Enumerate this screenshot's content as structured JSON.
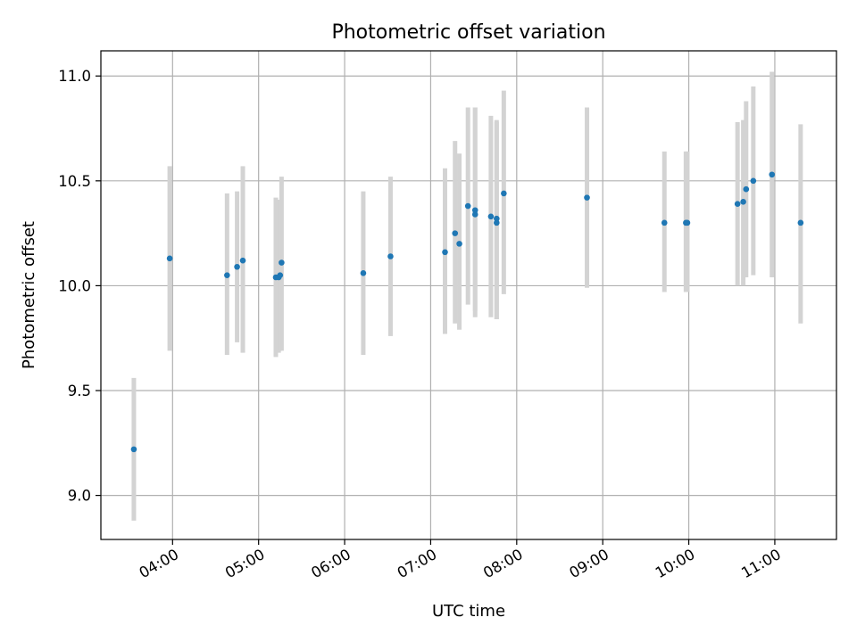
{
  "chart_data": {
    "type": "scatter",
    "title": "Photometric offset variation",
    "xlabel": "UTC time",
    "ylabel": "Photometric offset",
    "x_axis_type": "time",
    "xlim": [
      "03:10",
      "11:43"
    ],
    "ylim": [
      8.79,
      11.12
    ],
    "x_ticks": [
      "04:00",
      "05:00",
      "06:00",
      "07:00",
      "08:00",
      "09:00",
      "10:00",
      "11:00"
    ],
    "y_ticks": [
      9.0,
      9.5,
      10.0,
      10.5,
      11.0
    ],
    "y_tick_labels": [
      "9.0",
      "9.5",
      "10.0",
      "10.5",
      "11.0"
    ],
    "grid": true,
    "point_color": "#1f77b4",
    "errorbar_color": "#d3d3d3",
    "points": [
      {
        "x": "03:33",
        "y": 9.22,
        "ylow": 8.88,
        "yhigh": 9.56
      },
      {
        "x": "03:58",
        "y": 10.13,
        "ylow": 9.69,
        "yhigh": 10.57
      },
      {
        "x": "04:38",
        "y": 10.05,
        "ylow": 9.67,
        "yhigh": 10.44
      },
      {
        "x": "04:45",
        "y": 10.09,
        "ylow": 9.73,
        "yhigh": 10.45
      },
      {
        "x": "04:49",
        "y": 10.12,
        "ylow": 9.68,
        "yhigh": 10.57
      },
      {
        "x": "05:12",
        "y": 10.04,
        "ylow": 9.66,
        "yhigh": 10.42
      },
      {
        "x": "05:14",
        "y": 10.04,
        "ylow": 9.68,
        "yhigh": 10.41
      },
      {
        "x": "05:15",
        "y": 10.05,
        "ylow": 9.69,
        "yhigh": 10.41
      },
      {
        "x": "05:16",
        "y": 10.11,
        "ylow": 9.69,
        "yhigh": 10.52
      },
      {
        "x": "06:13",
        "y": 10.06,
        "ylow": 9.67,
        "yhigh": 10.45
      },
      {
        "x": "06:32",
        "y": 10.14,
        "ylow": 9.76,
        "yhigh": 10.52
      },
      {
        "x": "07:10",
        "y": 10.16,
        "ylow": 9.77,
        "yhigh": 10.56
      },
      {
        "x": "07:17",
        "y": 10.25,
        "ylow": 9.82,
        "yhigh": 10.69
      },
      {
        "x": "07:20",
        "y": 10.2,
        "ylow": 9.79,
        "yhigh": 10.63
      },
      {
        "x": "07:26",
        "y": 10.38,
        "ylow": 9.91,
        "yhigh": 10.85
      },
      {
        "x": "07:31",
        "y": 10.34,
        "ylow": 9.85,
        "yhigh": 10.85
      },
      {
        "x": "07:31",
        "y": 10.36,
        "ylow": 9.88,
        "yhigh": 10.85
      },
      {
        "x": "07:42",
        "y": 10.33,
        "ylow": 9.85,
        "yhigh": 10.81
      },
      {
        "x": "07:46",
        "y": 10.3,
        "ylow": 9.84,
        "yhigh": 10.78
      },
      {
        "x": "07:46",
        "y": 10.32,
        "ylow": 9.84,
        "yhigh": 10.79
      },
      {
        "x": "07:51",
        "y": 10.44,
        "ylow": 9.96,
        "yhigh": 10.93
      },
      {
        "x": "08:49",
        "y": 10.42,
        "ylow": 9.99,
        "yhigh": 10.85
      },
      {
        "x": "09:43",
        "y": 10.3,
        "ylow": 9.97,
        "yhigh": 10.64
      },
      {
        "x": "09:58",
        "y": 10.3,
        "ylow": 9.97,
        "yhigh": 10.64
      },
      {
        "x": "09:59",
        "y": 10.3,
        "ylow": 9.97,
        "yhigh": 10.64
      },
      {
        "x": "10:34",
        "y": 10.39,
        "ylow": 10.0,
        "yhigh": 10.78
      },
      {
        "x": "10:38",
        "y": 10.4,
        "ylow": 10.0,
        "yhigh": 10.79
      },
      {
        "x": "10:40",
        "y": 10.46,
        "ylow": 10.04,
        "yhigh": 10.88
      },
      {
        "x": "10:45",
        "y": 10.5,
        "ylow": 10.05,
        "yhigh": 10.95
      },
      {
        "x": "10:58",
        "y": 10.53,
        "ylow": 10.04,
        "yhigh": 11.02
      },
      {
        "x": "11:18",
        "y": 10.3,
        "ylow": 9.82,
        "yhigh": 10.77
      }
    ]
  }
}
